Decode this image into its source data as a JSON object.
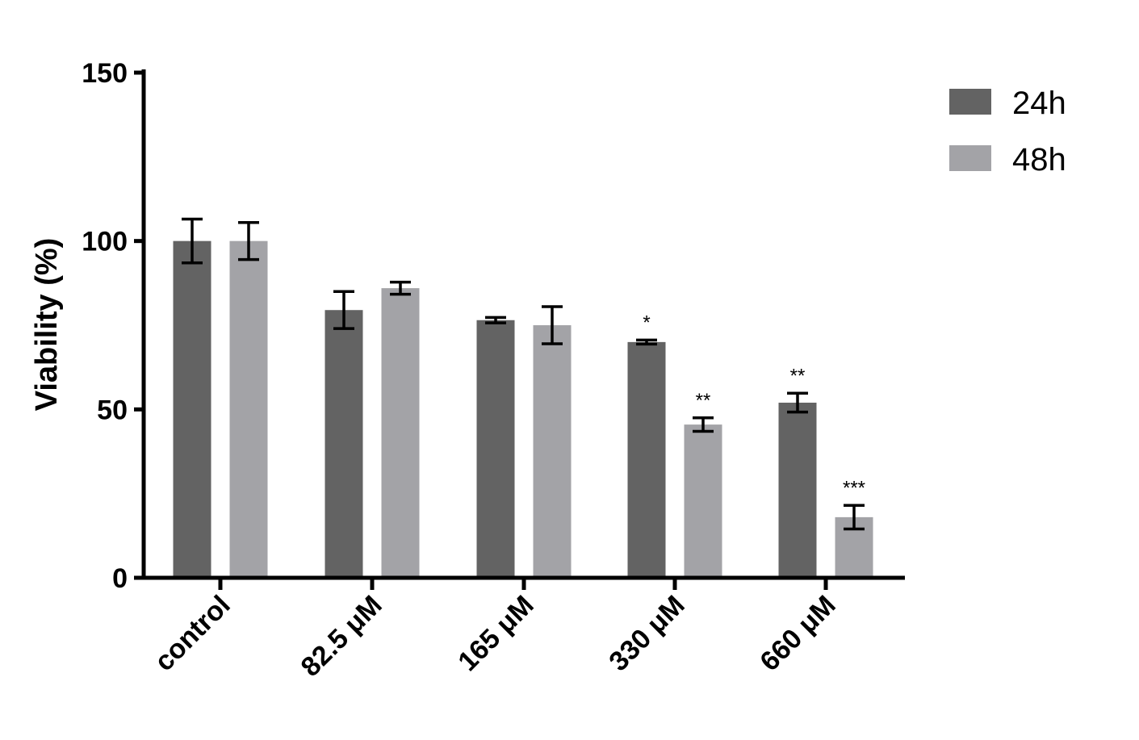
{
  "chart_data": {
    "type": "bar",
    "categories": [
      "control",
      "82.5 μM",
      "165 μM",
      "330 μM",
      "660 μM"
    ],
    "series": [
      {
        "name": "24h",
        "color": "#636363",
        "values": [
          100,
          79.5,
          76.5,
          70,
          52
        ],
        "errors": [
          6.5,
          5.5,
          0.8,
          0.6,
          2.8
        ],
        "annotations": [
          "",
          "",
          "",
          "*",
          "**"
        ]
      },
      {
        "name": "48h",
        "color": "#a3a3a7",
        "values": [
          100,
          86,
          75,
          45.5,
          18
        ],
        "errors": [
          5.5,
          1.8,
          5.5,
          2.0,
          3.5
        ],
        "annotations": [
          "",
          "",
          "",
          "**",
          "***"
        ]
      }
    ],
    "xlabel": "",
    "ylabel": "Viability (%)",
    "ylim": [
      0,
      150
    ],
    "yticks": [
      "0",
      "50",
      "100",
      "150"
    ],
    "grid": false,
    "legend_position": "top-right"
  }
}
